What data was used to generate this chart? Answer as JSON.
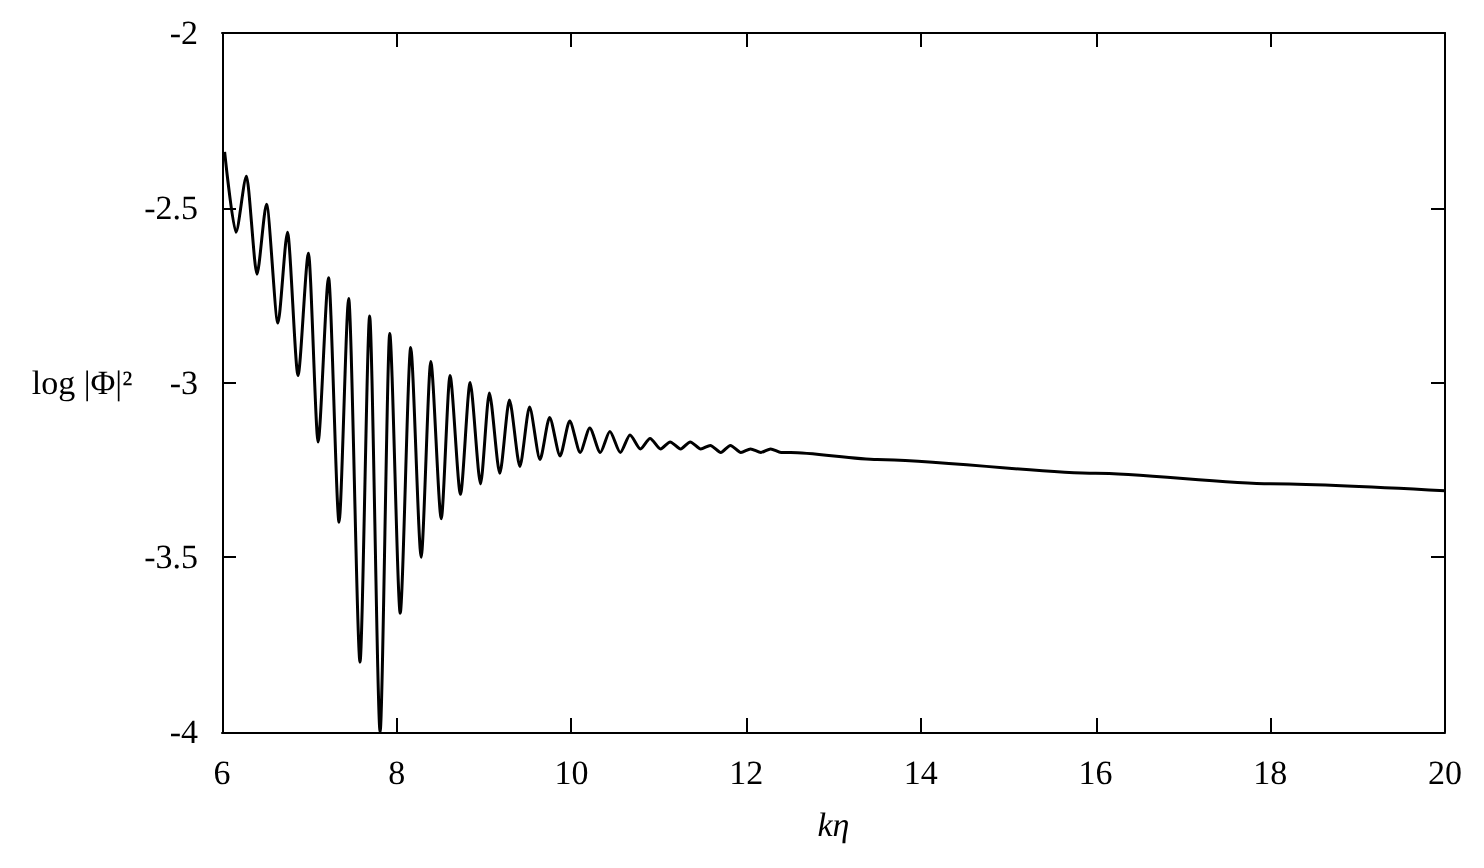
{
  "chart_data": {
    "type": "line",
    "xlabel": "kη",
    "ylabel": "log |Φ|²",
    "xlim": [
      6,
      20
    ],
    "xticks": [
      6,
      8,
      10,
      12,
      14,
      16,
      18,
      20
    ],
    "ylim": [
      -4,
      -2
    ],
    "yticks": [
      -4,
      -3.5,
      -3,
      -2.5,
      -2
    ],
    "grid": false,
    "marker": "none",
    "line_style": "solid",
    "series": [
      {
        "color": "#000000",
        "x": [
          6.03,
          6.16,
          6.28,
          6.4,
          6.51,
          6.64,
          6.75,
          6.87,
          6.99,
          7.1,
          7.22,
          7.34,
          7.45,
          7.58,
          7.69,
          7.81,
          7.92,
          8.04,
          8.16,
          8.28,
          8.39,
          8.51,
          8.61,
          8.73,
          8.84,
          8.96,
          9.06,
          9.18,
          9.29,
          9.41,
          9.52,
          9.64,
          9.75,
          9.87,
          9.98,
          10.1,
          10.21,
          10.33,
          10.44,
          10.56,
          10.67,
          10.79,
          10.9,
          11.02,
          11.13,
          11.25,
          11.36,
          11.48,
          11.59,
          11.71,
          11.82,
          11.94,
          12.05,
          12.17,
          12.28,
          12.4,
          12.51,
          13.5,
          16,
          18,
          20
        ],
        "values": [
          -2.34,
          -2.57,
          -2.41,
          -2.69,
          -2.49,
          -2.83,
          -2.57,
          -2.98,
          -2.63,
          -3.17,
          -2.7,
          -3.4,
          -2.76,
          -3.8,
          -2.81,
          -4,
          -2.86,
          -3.66,
          -2.9,
          -3.5,
          -2.94,
          -3.39,
          -2.98,
          -3.32,
          -3.0,
          -3.29,
          -3.03,
          -3.26,
          -3.05,
          -3.24,
          -3.07,
          -3.22,
          -3.1,
          -3.21,
          -3.11,
          -3.2,
          -3.13,
          -3.2,
          -3.14,
          -3.2,
          -3.15,
          -3.19,
          -3.16,
          -3.19,
          -3.17,
          -3.19,
          -3.17,
          -3.19,
          -3.18,
          -3.2,
          -3.18,
          -3.2,
          -3.19,
          -3.2,
          -3.19,
          -3.2,
          -3.2,
          -3.22,
          -3.26,
          -3.29,
          -3.31
        ]
      }
    ]
  }
}
